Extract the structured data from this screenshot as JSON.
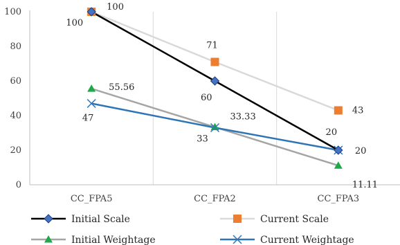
{
  "chart_data": {
    "type": "line",
    "categories": [
      "CC_FPA5",
      "CC_FPA2",
      "CC_FPA3"
    ],
    "ylim": [
      0,
      100
    ],
    "yticks": [
      0,
      20,
      40,
      60,
      80,
      100
    ],
    "grid": "vertical category separators",
    "legend_position": "bottom",
    "series": [
      {
        "name": "Initial Scale",
        "values": [
          100,
          60,
          20
        ],
        "labels": [
          "100",
          "60",
          "20"
        ],
        "color": "#000000",
        "marker": "diamond",
        "marker_color": "#4472c4"
      },
      {
        "name": "Current Scale",
        "values": [
          100,
          71,
          43
        ],
        "labels": [
          "100",
          "71",
          "43"
        ],
        "color": "#d9d9d9",
        "marker": "square",
        "marker_color": "#ed7d31"
      },
      {
        "name": "Initial Weightage",
        "values": [
          55.56,
          33.33,
          11.11
        ],
        "labels": [
          "55.56",
          "33.33",
          "11.11"
        ],
        "color": "#a5a5a5",
        "marker": "triangle",
        "marker_color": "#1fa84a"
      },
      {
        "name": "Current Weightage",
        "values": [
          47,
          33,
          20
        ],
        "labels": [
          "47",
          "33",
          "20"
        ],
        "color": "#2e75b6",
        "marker": "x",
        "marker_color": "#2e75b6"
      }
    ]
  }
}
